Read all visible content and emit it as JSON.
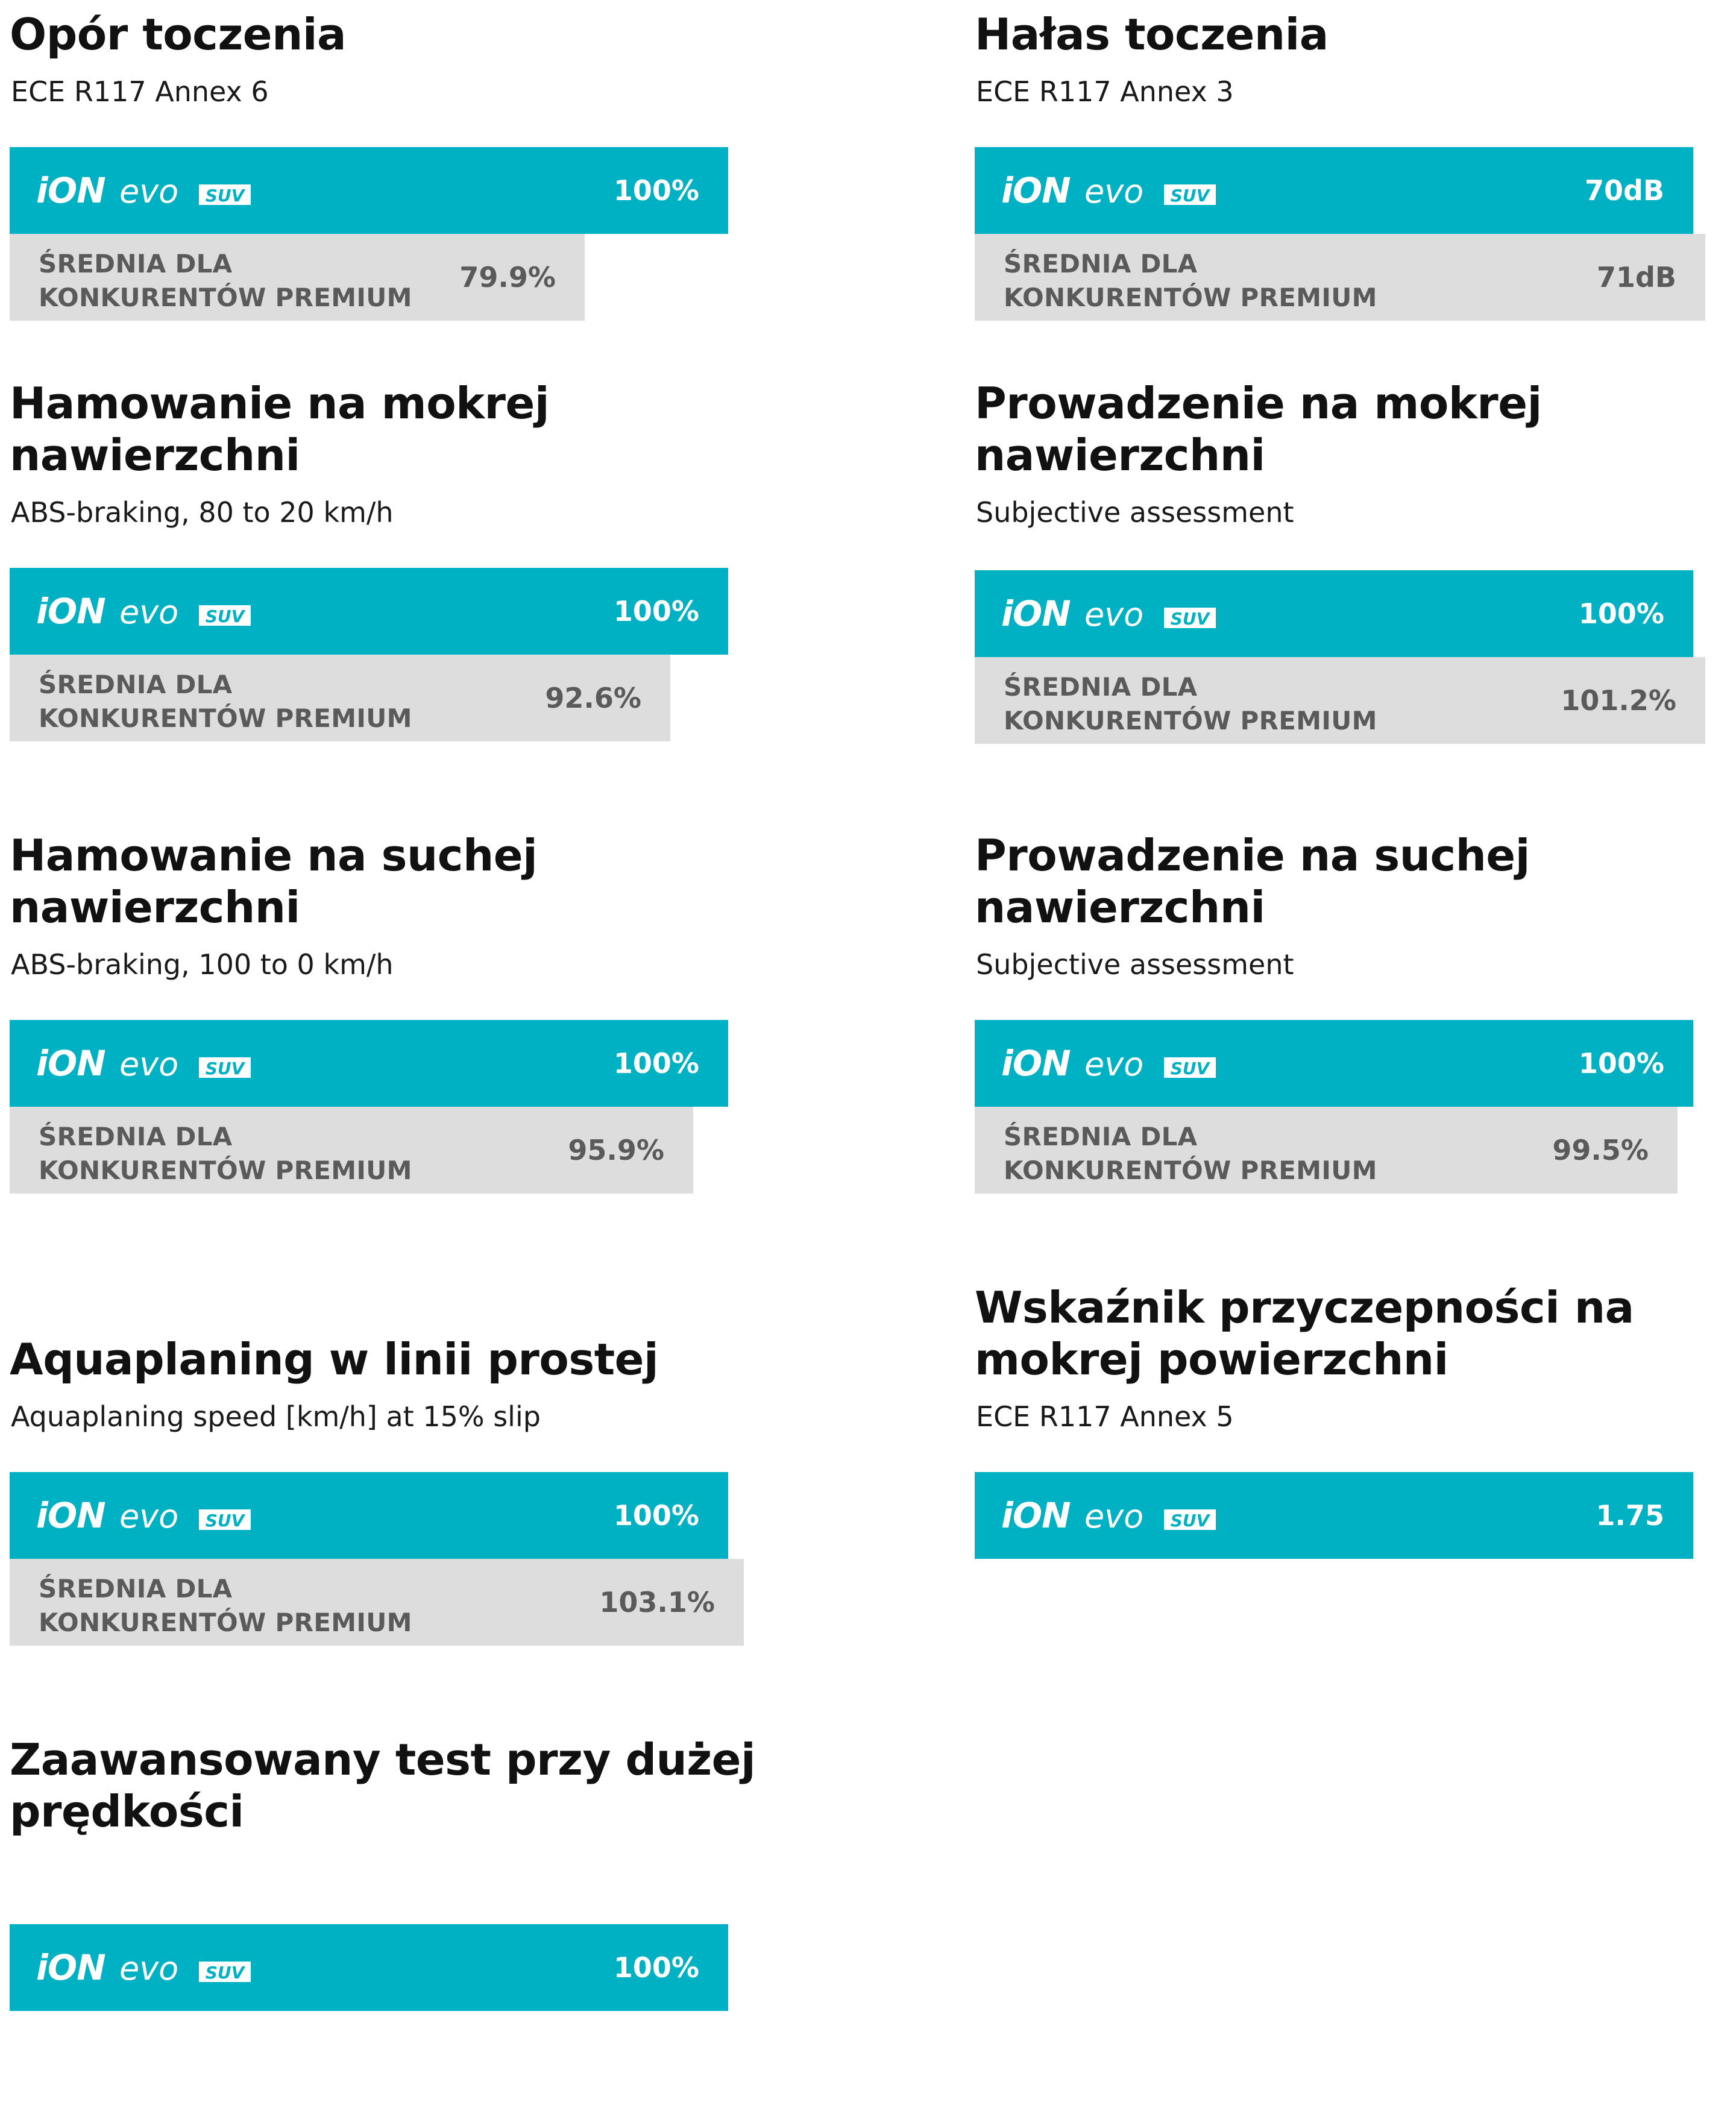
{
  "brand": {
    "logo_text_ion": "iON",
    "logo_text_evo": "evo",
    "logo_badge": "SUV",
    "main_color": "#00b0c3",
    "comparison_color": "#dddddd"
  },
  "chart_data": [
    {
      "type": "bar",
      "title": "Opór toczenia",
      "subtitle": "ECE R117 Annex 6",
      "series": [
        {
          "value": 100,
          "label": "100%"
        },
        {
          "name": "ŚREDNIA DLA KONKURENTÓW PREMIUM",
          "value": 79.9,
          "label": "79.9%"
        }
      ]
    },
    {
      "type": "bar",
      "title": "Hałas toczenia",
      "subtitle": "ECE R117 Annex 3",
      "series": [
        {
          "value": 70,
          "label": "70dB"
        },
        {
          "name": "ŚREDNIA DLA KONKURENTÓW PREMIUM",
          "value": 71,
          "label": "71dB"
        }
      ]
    },
    {
      "type": "bar",
      "title": "Hamowanie na mokrej nawierzchni",
      "subtitle": "ABS-braking, 80 to 20 km/h",
      "series": [
        {
          "value": 100,
          "label": "100%"
        },
        {
          "name": "ŚREDNIA DLA KONKURENTÓW PREMIUM",
          "value": 92.6,
          "label": "92.6%"
        }
      ]
    },
    {
      "type": "bar",
      "title": "Prowadzenie na mokrej nawierzchni",
      "subtitle": "Subjective assessment",
      "series": [
        {
          "value": 100,
          "label": "100%"
        },
        {
          "name": "ŚREDNIA DLA KONKURENTÓW PREMIUM",
          "value": 101.2,
          "label": "101.2%"
        }
      ]
    },
    {
      "type": "bar",
      "title": "Hamowanie na suchej nawierzchni",
      "subtitle": "ABS-braking, 100 to 0 km/h",
      "series": [
        {
          "value": 100,
          "label": "100%"
        },
        {
          "name": "ŚREDNIA DLA KONKURENTÓW PREMIUM",
          "value": 95.9,
          "label": "95.9%"
        }
      ]
    },
    {
      "type": "bar",
      "title": "Prowadzenie na suchej nawierzchni",
      "subtitle": "Subjective assessment",
      "series": [
        {
          "value": 100,
          "label": "100%"
        },
        {
          "name": "ŚREDNIA DLA KONKURENTÓW PREMIUM",
          "value": 99.5,
          "label": "99.5%"
        }
      ]
    },
    {
      "type": "bar",
      "title": "Aquaplaning w linii prostej",
      "subtitle": "Aquaplaning speed [km/h] at 15% slip",
      "series": [
        {
          "value": 100,
          "label": "100%"
        },
        {
          "name": "ŚREDNIA DLA KONKURENTÓW PREMIUM",
          "value": 103.1,
          "label": "103.1%"
        }
      ]
    },
    {
      "type": "bar",
      "title": "Wskaźnik przyczepności na mokrej powierzchni",
      "subtitle": "ECE R117 Annex 5",
      "series": [
        {
          "value": 1.75,
          "label": "1.75"
        }
      ]
    },
    {
      "type": "bar",
      "title": "Zaawansowany test przy dużej prędkości",
      "subtitle": "",
      "series": [
        {
          "value": 100,
          "label": "100%"
        }
      ]
    }
  ]
}
